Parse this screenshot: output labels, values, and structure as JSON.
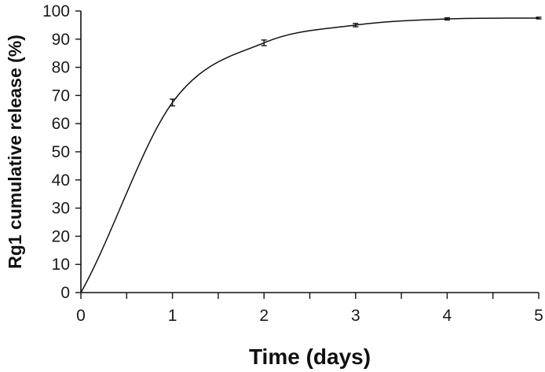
{
  "chart_data": {
    "type": "line",
    "title": "",
    "xlabel": "Time (days)",
    "ylabel": "Rg1 cumulative release (%)",
    "xlim": [
      0,
      5
    ],
    "ylim": [
      0,
      100
    ],
    "x_ticks": [
      "0",
      "1",
      "2",
      "3",
      "4",
      "5"
    ],
    "y_ticks": [
      "0",
      "10",
      "20",
      "30",
      "40",
      "50",
      "60",
      "70",
      "80",
      "90",
      "100"
    ],
    "grid": false,
    "legend": "none",
    "series": [
      {
        "x": [
          0,
          1,
          2,
          3,
          4,
          5
        ],
        "y": [
          0,
          67.5,
          88.7,
          95.0,
          97.2,
          97.5
        ],
        "error": [
          0,
          1.2,
          1.0,
          0.6,
          0.4,
          0.3
        ],
        "color": "#111111",
        "smooth": true
      }
    ]
  }
}
